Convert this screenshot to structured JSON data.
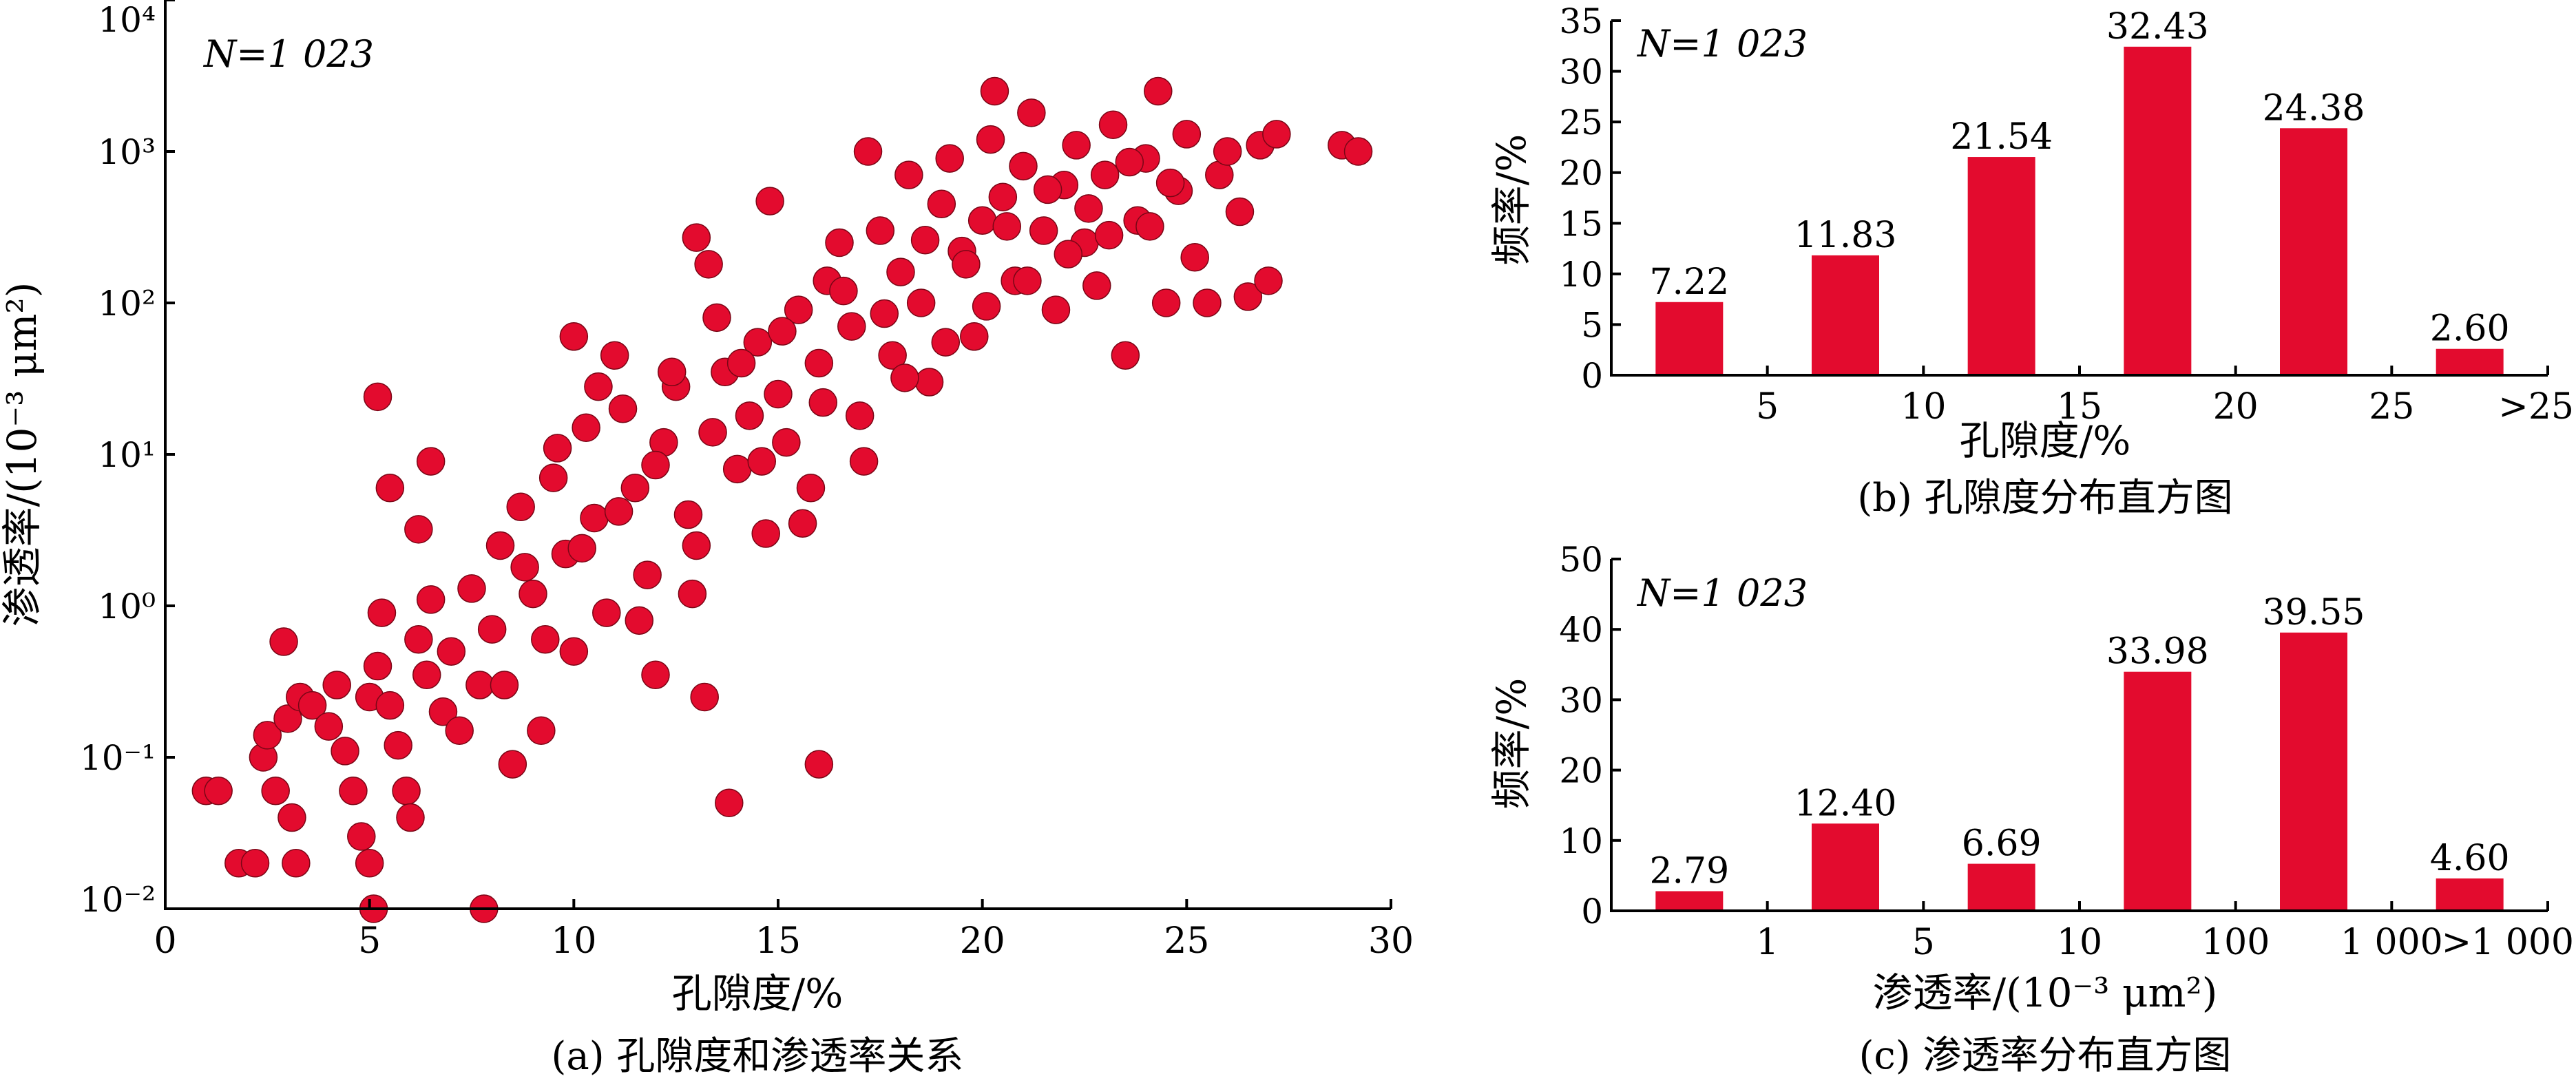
{
  "chart_data": [
    {
      "type": "scatter",
      "caption": "(a) 孔隙度和渗透率关系",
      "xlabel": "孔隙度/%",
      "ylabel": "渗透率/(10⁻³ μm²)",
      "annotation": "N=1 023",
      "xlim": [
        0,
        30
      ],
      "ylim": [
        0.01,
        10000
      ],
      "y_scale": "log",
      "x_ticks": [
        "0",
        "5",
        "10",
        "15",
        "20",
        "25",
        "30"
      ],
      "y_ticks": [
        "10⁻²",
        "10⁻¹",
        "10⁰",
        "10¹",
        "10²",
        "10³",
        "10⁴"
      ],
      "color": "#E30B2E",
      "points": [
        [
          1.0,
          0.06
        ],
        [
          1.3,
          0.06
        ],
        [
          1.8,
          0.02
        ],
        [
          2.2,
          0.02
        ],
        [
          2.4,
          0.1
        ],
        [
          2.5,
          0.14
        ],
        [
          2.7,
          0.06
        ],
        [
          2.9,
          0.58
        ],
        [
          3.1,
          0.04
        ],
        [
          3.2,
          0.02
        ],
        [
          3.0,
          0.18
        ],
        [
          3.3,
          0.25
        ],
        [
          3.6,
          0.22
        ],
        [
          4.0,
          0.16
        ],
        [
          4.2,
          0.3
        ],
        [
          4.4,
          0.11
        ],
        [
          4.6,
          0.06
        ],
        [
          4.8,
          0.03
        ],
        [
          5.0,
          0.02
        ],
        [
          5.0,
          0.25
        ],
        [
          5.2,
          0.4
        ],
        [
          5.3,
          0.9
        ],
        [
          5.5,
          0.22
        ],
        [
          5.7,
          0.12
        ],
        [
          5.9,
          0.06
        ],
        [
          6.0,
          0.04
        ],
        [
          6.2,
          0.6
        ],
        [
          6.4,
          0.35
        ],
        [
          6.5,
          1.1
        ],
        [
          6.8,
          0.2
        ],
        [
          7.0,
          0.5
        ],
        [
          7.2,
          0.15
        ],
        [
          7.5,
          1.3
        ],
        [
          7.7,
          0.3
        ],
        [
          7.8,
          0.01
        ],
        [
          5.1,
          0.01
        ],
        [
          5.2,
          24
        ],
        [
          5.5,
          6
        ],
        [
          6.2,
          3.2
        ],
        [
          6.5,
          9
        ],
        [
          8.0,
          0.7
        ],
        [
          8.2,
          2.5
        ],
        [
          8.5,
          0.09
        ],
        [
          8.7,
          4.5
        ],
        [
          9.0,
          1.2
        ],
        [
          9.2,
          0.15
        ],
        [
          9.5,
          7
        ],
        [
          9.8,
          2.2
        ],
        [
          10.0,
          0.5
        ],
        [
          10.0,
          60
        ],
        [
          10.3,
          15
        ],
        [
          10.5,
          3.8
        ],
        [
          10.8,
          0.9
        ],
        [
          11.0,
          45
        ],
        [
          11.2,
          20
        ],
        [
          11.5,
          6
        ],
        [
          11.8,
          1.6
        ],
        [
          12.0,
          0.35
        ],
        [
          12.2,
          12
        ],
        [
          12.5,
          28
        ],
        [
          12.8,
          4
        ],
        [
          13.0,
          2.5
        ],
        [
          13.2,
          0.25
        ],
        [
          13.0,
          270
        ],
        [
          13.3,
          180
        ],
        [
          13.5,
          80
        ],
        [
          13.7,
          35
        ],
        [
          13.8,
          0.05
        ],
        [
          14.0,
          8
        ],
        [
          14.3,
          18
        ],
        [
          14.5,
          55
        ],
        [
          14.7,
          3
        ],
        [
          14.8,
          470
        ],
        [
          15.0,
          25
        ],
        [
          15.2,
          12
        ],
        [
          15.5,
          90
        ],
        [
          15.8,
          6
        ],
        [
          16.0,
          0.09
        ],
        [
          16.0,
          40
        ],
        [
          16.2,
          140
        ],
        [
          16.5,
          250
        ],
        [
          16.8,
          70
        ],
        [
          17.0,
          18
        ],
        [
          17.2,
          1000
        ],
        [
          17.5,
          300
        ],
        [
          17.8,
          45
        ],
        [
          18.0,
          160
        ],
        [
          18.2,
          700
        ],
        [
          18.5,
          100
        ],
        [
          18.7,
          30
        ],
        [
          19.0,
          450
        ],
        [
          19.2,
          900
        ],
        [
          19.5,
          220
        ],
        [
          19.8,
          60
        ],
        [
          20.0,
          350
        ],
        [
          20.2,
          1200
        ],
        [
          20.3,
          2500
        ],
        [
          20.5,
          500
        ],
        [
          20.8,
          140
        ],
        [
          21.0,
          800
        ],
        [
          21.2,
          1800
        ],
        [
          21.5,
          300
        ],
        [
          21.8,
          90
        ],
        [
          22.0,
          600
        ],
        [
          22.3,
          1100
        ],
        [
          22.5,
          250
        ],
        [
          22.8,
          130
        ],
        [
          23.0,
          700
        ],
        [
          23.2,
          1500
        ],
        [
          23.5,
          45
        ],
        [
          23.8,
          350
        ],
        [
          24.0,
          900
        ],
        [
          24.3,
          2500
        ],
        [
          24.5,
          100
        ],
        [
          24.8,
          550
        ],
        [
          25.0,
          1300
        ],
        [
          25.2,
          200
        ],
        [
          25.5,
          100
        ],
        [
          25.8,
          700
        ],
        [
          26.0,
          1000
        ],
        [
          26.3,
          400
        ],
        [
          26.5,
          110
        ],
        [
          26.8,
          1100
        ],
        [
          27.0,
          140
        ],
        [
          27.2,
          1300
        ],
        [
          28.8,
          1100
        ],
        [
          29.2,
          1000
        ],
        [
          8.3,
          0.3
        ],
        [
          8.8,
          1.8
        ],
        [
          9.3,
          0.6
        ],
        [
          9.6,
          11
        ],
        [
          10.2,
          2.4
        ],
        [
          10.6,
          28
        ],
        [
          11.1,
          4.2
        ],
        [
          11.6,
          0.8
        ],
        [
          12.0,
          8.5
        ],
        [
          12.4,
          35
        ],
        [
          12.9,
          1.2
        ],
        [
          13.4,
          14
        ],
        [
          14.1,
          40
        ],
        [
          14.6,
          9
        ],
        [
          15.1,
          65
        ],
        [
          15.6,
          3.5
        ],
        [
          16.1,
          22
        ],
        [
          16.6,
          120
        ],
        [
          17.1,
          9
        ],
        [
          17.6,
          85
        ],
        [
          18.1,
          32
        ],
        [
          18.6,
          260
        ],
        [
          19.1,
          55
        ],
        [
          19.6,
          180
        ],
        [
          20.1,
          95
        ],
        [
          20.6,
          320
        ],
        [
          21.1,
          140
        ],
        [
          21.6,
          560
        ],
        [
          22.1,
          210
        ],
        [
          22.6,
          420
        ],
        [
          23.1,
          280
        ],
        [
          23.6,
          850
        ],
        [
          24.1,
          320
        ],
        [
          24.6,
          620
        ]
      ]
    },
    {
      "type": "bar",
      "caption": "(b) 孔隙度分布直方图",
      "xlabel": "孔隙度/%",
      "ylabel": "频率/%",
      "annotation": "N=1 023",
      "x_ticks": [
        "5",
        "10",
        "15",
        "20",
        "25",
        ">25"
      ],
      "ylim": [
        0,
        35
      ],
      "y_ticks": [
        "0",
        "5",
        "10",
        "15",
        "20",
        "25",
        "30",
        "35"
      ],
      "values": [
        7.22,
        11.83,
        21.54,
        32.43,
        24.38,
        2.6
      ],
      "value_labels": [
        "7.22",
        "11.83",
        "21.54",
        "32.43",
        "24.38",
        "2.60"
      ],
      "color": "#E30B2E"
    },
    {
      "type": "bar",
      "caption": "(c) 渗透率分布直方图",
      "xlabel": "渗透率/(10⁻³ μm²)",
      "ylabel": "频率/%",
      "annotation": "N=1 023",
      "x_ticks": [
        "1",
        "5",
        "10",
        "100",
        "1 000",
        ">1 000"
      ],
      "ylim": [
        0,
        50
      ],
      "y_ticks": [
        "0",
        "10",
        "20",
        "30",
        "40",
        "50"
      ],
      "values": [
        2.79,
        12.4,
        6.69,
        33.98,
        39.55,
        4.6
      ],
      "value_labels": [
        "2.79",
        "12.40",
        "6.69",
        "33.98",
        "39.55",
        "4.60"
      ],
      "color": "#E30B2E"
    }
  ]
}
